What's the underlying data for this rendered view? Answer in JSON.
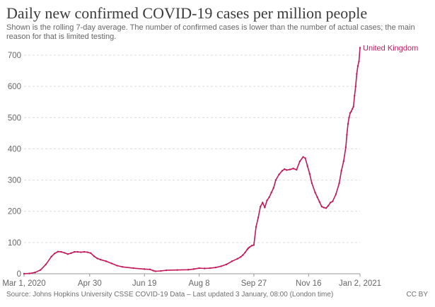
{
  "title": "Daily new confirmed COVID-19 cases per million people",
  "subtitle": "Shown is the rolling 7-day average. The number of confirmed cases is lower than the number of actual cases; the main reason for that is limited testing.",
  "footer": {
    "source": "Source: Johns Hopkins University CSSE COVID-19 Data – Last updated 3 January, 08:00 (London time)",
    "license": "CC BY"
  },
  "colors": {
    "series": "#c2185b",
    "grid": "#dcdcdc",
    "axis": "#666666"
  },
  "chart_data": {
    "type": "line",
    "title": "Daily new confirmed COVID-19 cases per million people",
    "xlabel": "",
    "ylabel": "",
    "ylim": [
      0,
      700
    ],
    "yticks": [
      0,
      100,
      200,
      300,
      400,
      500,
      600,
      700
    ],
    "xlim_days": [
      0,
      307
    ],
    "xticks": [
      {
        "day": 0,
        "label": "Mar 1, 2020"
      },
      {
        "day": 60,
        "label": "Apr 30"
      },
      {
        "day": 110,
        "label": "Jun 19"
      },
      {
        "day": 160,
        "label": "Aug 8"
      },
      {
        "day": 210,
        "label": "Sep 27"
      },
      {
        "day": 260,
        "label": "Nov 16"
      },
      {
        "day": 307,
        "label": "Jan 2, 2021"
      }
    ],
    "grid": true,
    "series": [
      {
        "name": "United Kingdom",
        "x_days": [
          0,
          5,
          10,
          15,
          20,
          25,
          28,
          31,
          34,
          37,
          40,
          43,
          46,
          49,
          52,
          55,
          58,
          61,
          64,
          67,
          70,
          75,
          80,
          85,
          90,
          100,
          110,
          115,
          118,
          120,
          125,
          130,
          140,
          150,
          155,
          160,
          165,
          170,
          175,
          180,
          185,
          190,
          195,
          198,
          200,
          202,
          204,
          205,
          206,
          208,
          210,
          212,
          214,
          216,
          218,
          220,
          222,
          224,
          226,
          228,
          230,
          233,
          236,
          238,
          240,
          243,
          246,
          249,
          252,
          255,
          257,
          259,
          261,
          263,
          266,
          268,
          270,
          272,
          274,
          276,
          278,
          280,
          282,
          285,
          288,
          290,
          292,
          294,
          295,
          296,
          297,
          298,
          299,
          300,
          301,
          302,
          303,
          304,
          305,
          306,
          307
        ],
        "values": [
          0,
          1,
          4,
          12,
          30,
          55,
          65,
          71,
          70,
          67,
          63,
          66,
          70,
          70,
          69,
          70,
          69,
          66,
          56,
          49,
          45,
          40,
          33,
          26,
          22,
          18,
          15,
          14,
          10,
          8,
          9,
          11,
          12,
          13,
          15,
          18,
          17,
          18,
          20,
          24,
          30,
          40,
          48,
          54,
          60,
          68,
          78,
          82,
          85,
          90,
          92,
          150,
          180,
          215,
          228,
          212,
          235,
          245,
          260,
          275,
          300,
          318,
          330,
          335,
          332,
          334,
          337,
          333,
          360,
          374,
          370,
          345,
          320,
          290,
          260,
          245,
          230,
          215,
          212,
          210,
          218,
          228,
          232,
          255,
          290,
          330,
          360,
          405,
          445,
          480,
          500,
          515,
          520,
          528,
          535,
          570,
          600,
          640,
          665,
          680,
          724
        ]
      }
    ],
    "series_label": "United Kingdom"
  }
}
